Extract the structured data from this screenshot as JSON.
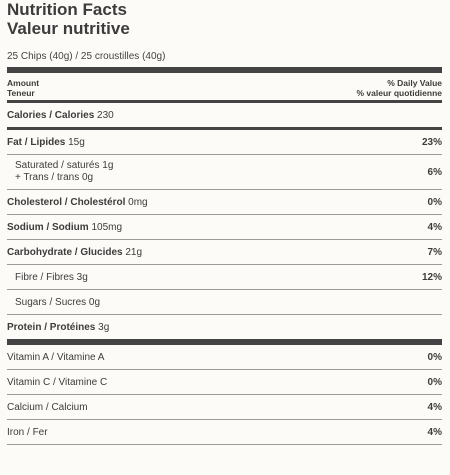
{
  "title_en": "Nutrition Facts",
  "title_fr": "Valeur nutritive",
  "serving": "25 Chips (40g) / 25 croustilles (40g)",
  "header": {
    "amount": "Amount",
    "amount_fr": "Teneur",
    "dv": "% Daily Value",
    "dv_fr": "% valeur quotidienne"
  },
  "calories": {
    "label": "Calories / Calories",
    "value": "230"
  },
  "fat": {
    "label": "Fat / Lipides",
    "amount": "15g",
    "pct": "23%"
  },
  "saturated": {
    "label": "Saturated / saturés 1g",
    "label2": "+ Trans / trans 0g",
    "pct": "6%"
  },
  "cholesterol": {
    "label": "Cholesterol / Cholestérol",
    "amount": "0mg",
    "pct": "0%"
  },
  "sodium": {
    "label": "Sodium / Sodium",
    "amount": "105mg",
    "pct": "4%"
  },
  "carbohydrate": {
    "label": "Carbohydrate / Glucides",
    "amount": "21g",
    "pct": "7%"
  },
  "fibre": {
    "label": "Fibre / Fibres 3g",
    "pct": "12%"
  },
  "sugars": {
    "label": "Sugars / Sucres 0g"
  },
  "protein": {
    "label": "Protein / Protéines",
    "amount": "3g"
  },
  "vitamins": [
    {
      "label": "Vitamin A / Vitamine A",
      "pct": "0%"
    },
    {
      "label": "Vitamin C / Vitamine C",
      "pct": "0%"
    },
    {
      "label": "Calcium / Calcium",
      "pct": "4%"
    },
    {
      "label": "Iron / Fer",
      "pct": "4%"
    }
  ]
}
